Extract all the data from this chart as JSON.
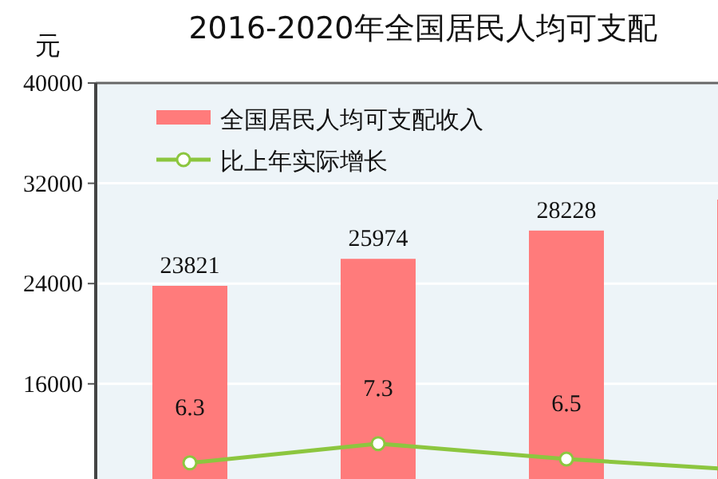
{
  "chart_data": {
    "type": "bar",
    "title": "2016-2020年全国居民人均可支配",
    "ylabel": "元",
    "categories": [
      null,
      null,
      null,
      null
    ],
    "ylim": [
      0,
      40000
    ],
    "yticks": [
      16000,
      24000,
      32000,
      40000
    ],
    "y2lim": [
      0,
      26
    ],
    "grid": "y",
    "legend": "top left",
    "marker": "circle",
    "series": [
      {
        "name": "全国居民人均可支配收入",
        "color": "#ff7b7b",
        "values": [
          23821,
          25974,
          28228,
          30700
        ],
        "value_labels": [
          "23821",
          "25974",
          "28228",
          null
        ]
      },
      {
        "name": "比上年实际增长",
        "type": "line",
        "axis": "y2",
        "color": "#8cc63f",
        "values": [
          6.3,
          7.3,
          6.5,
          5.9
        ],
        "value_labels": [
          "6.3",
          "7.3",
          "6.5",
          null
        ]
      }
    ]
  }
}
